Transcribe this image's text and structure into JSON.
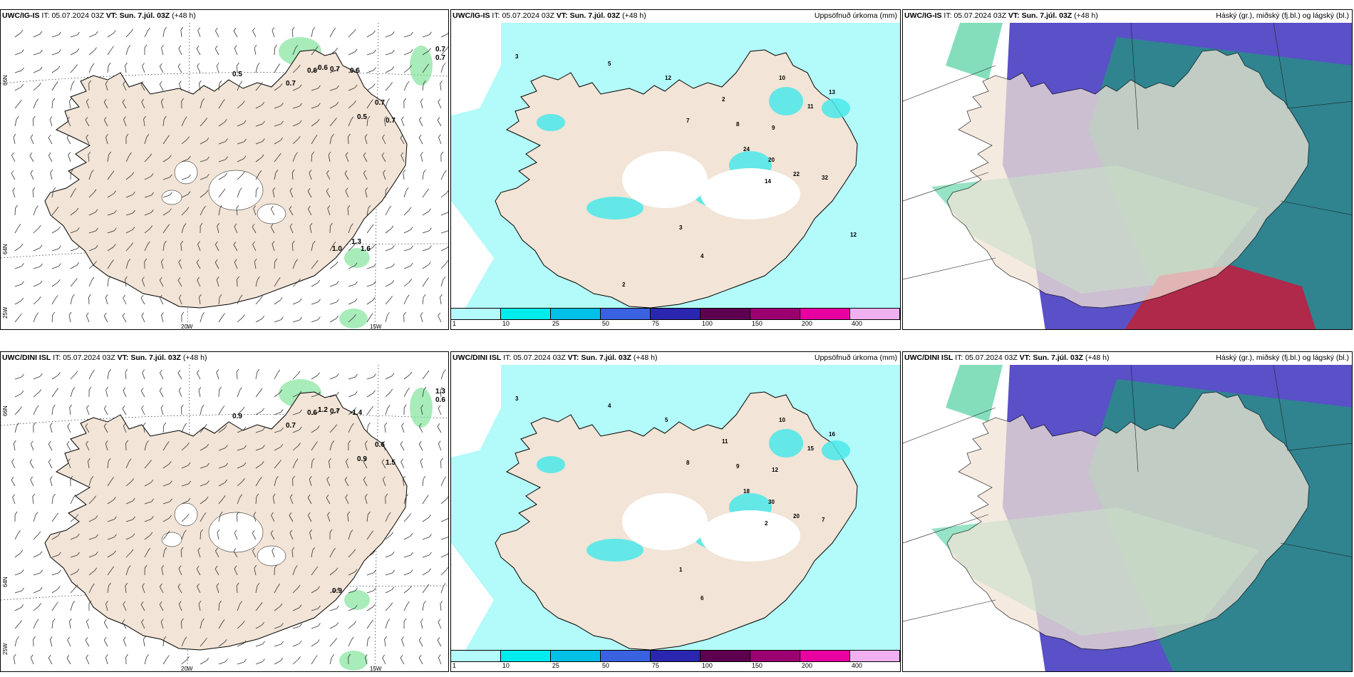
{
  "rows": [
    {
      "model": "UWC/IG-IS",
      "it_label": "IT:",
      "it_value": "05.07.2024 03Z",
      "vt_label": "VT:",
      "vt_value": "Sun. 7.júl. 03Z",
      "lead": "(+48 h)",
      "wind_values": [
        "0.7",
        "0.7",
        "0.5",
        "0.6",
        "0.6",
        "0.7",
        "0.6",
        "0.7",
        "0.7",
        "0.5",
        "0.7",
        "1.0",
        "1.3",
        "1.6"
      ],
      "precip_values": [
        "3",
        "5",
        "12",
        "2",
        "10",
        "7",
        "8",
        "9",
        "11",
        "13",
        "24",
        "20",
        "22",
        "32",
        "14",
        "3",
        "4",
        "2",
        "12"
      ]
    },
    {
      "model": "UWC/DINI ISL",
      "it_label": "IT:",
      "it_value": "05.07.2024 03Z",
      "vt_label": "VT:",
      "vt_value": "Sun. 7.júl. 03Z",
      "lead": "(+48 h)",
      "wind_values": [
        "1.3",
        "0.6",
        "0.9",
        "0.6",
        "1.2",
        "0.7",
        "-1.4",
        "0.7",
        "0.6",
        "0.9",
        "1.5",
        "0.9"
      ],
      "precip_values": [
        "3",
        "4",
        "5",
        "11",
        "10",
        "8",
        "9",
        "12",
        "15",
        "16",
        "18",
        "30",
        "20",
        "7",
        "2",
        "1",
        "6"
      ]
    }
  ],
  "precip_title": "Uppsöfnuð úrkoma (mm)",
  "cloud_title": "Háský (gr.), miðský (fj.bl.) og lágský (bl.)",
  "legend": {
    "ticks": [
      "1",
      "10",
      "25",
      "50",
      "75",
      "100",
      "150",
      "200",
      "400"
    ],
    "colors": [
      "#b3fafa",
      "#00ecec",
      "#00c0e8",
      "#3a62e0",
      "#2a26b0",
      "#5e0050",
      "#9c0070",
      "#e800a0",
      "#f0b0f0"
    ]
  },
  "grid_labels": {
    "lat_66": "66N",
    "lat_64": "64N",
    "lat_25w": "25W",
    "lon_20w": "20W",
    "lon_15w": "15W"
  },
  "colors": {
    "land": "#f2e4d6",
    "sea_precip": "#b3fafa",
    "green": "#6ee08c",
    "cloud_high": "#5a50c8",
    "cloud_teal": "#2a8a8a",
    "cloud_green": "#50d0a0",
    "cloud_red": "#b0284a"
  }
}
